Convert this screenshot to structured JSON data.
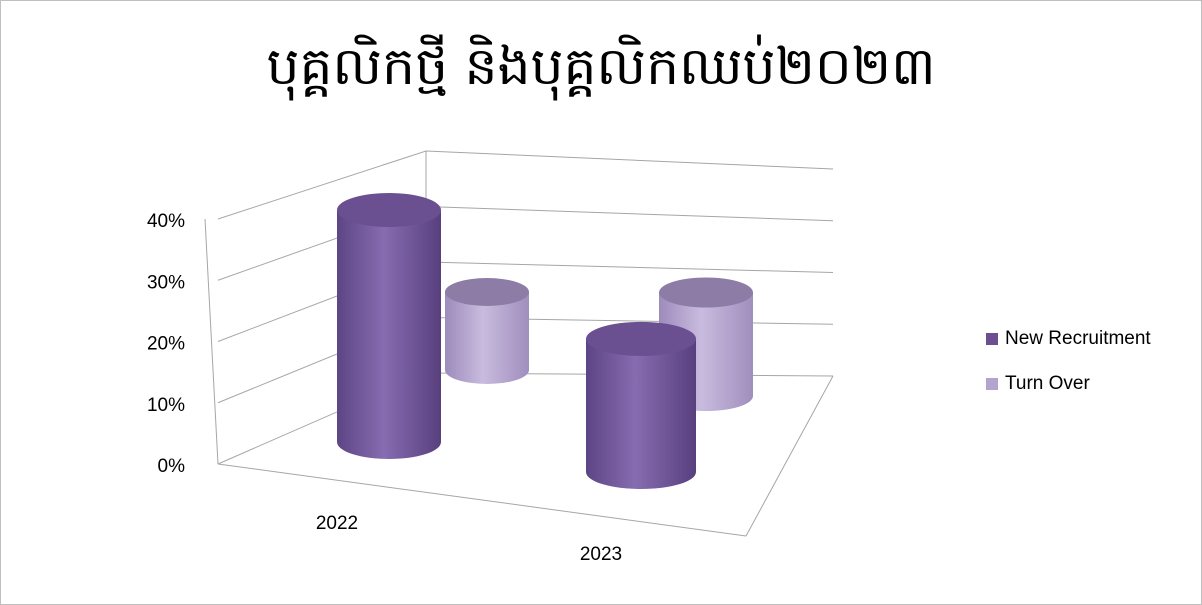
{
  "chart_data": {
    "type": "bar",
    "subtype": "3d-cylinder",
    "title": "បុគ្គលិកថ្មី និងបុគ្គលិកឈប់២០២៣",
    "categories": [
      "2022",
      "2023"
    ],
    "series": [
      {
        "name": "New Recruitment",
        "values": [
          0.4,
          0.27
        ],
        "color": "#7a5fa3"
      },
      {
        "name": "Turn Over",
        "values": [
          0.24,
          0.3
        ],
        "color": "#b4a3cf"
      }
    ],
    "ylim": [
      0,
      0.4
    ],
    "yticks": [
      0,
      0.1,
      0.2,
      0.3,
      0.4
    ],
    "ytick_labels": [
      "0%",
      "10%",
      "20%",
      "30%",
      "40%"
    ],
    "grid": true,
    "legend_position": "right"
  }
}
